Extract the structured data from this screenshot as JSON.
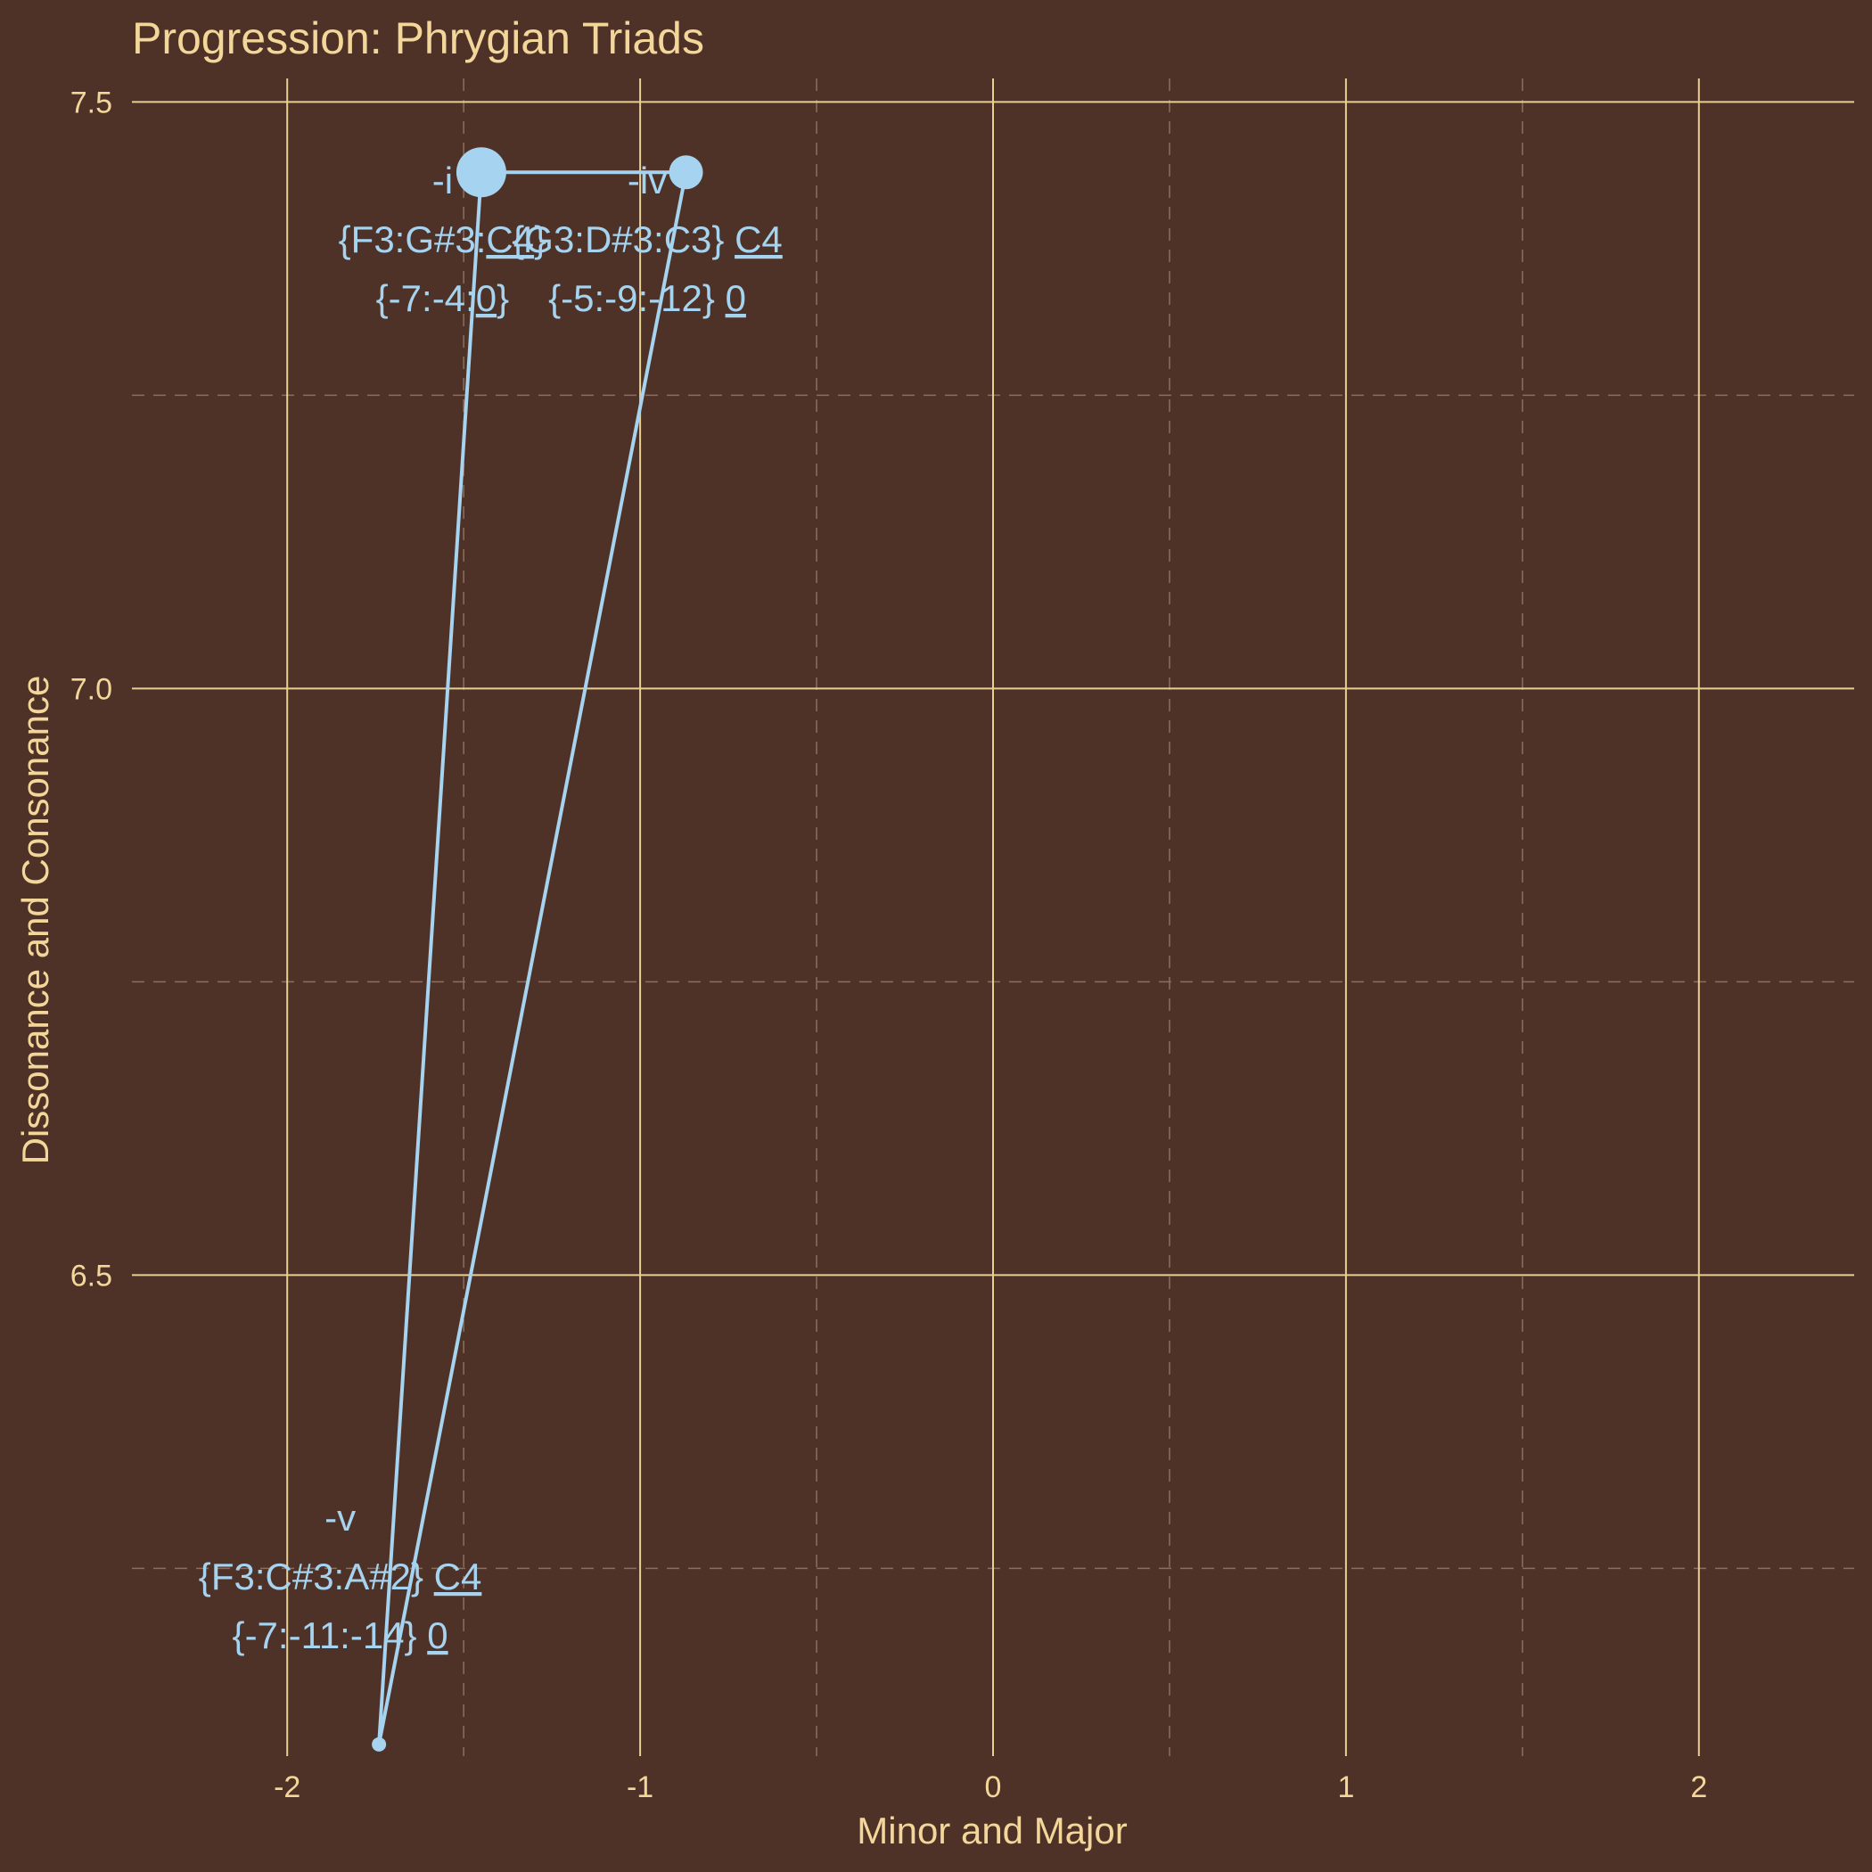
{
  "background_color": "#4f3227",
  "text_color": "#f3d79a",
  "series_color": "#a6d3ef",
  "chart_data": {
    "type": "line",
    "title": "Progression: Phrygian Triads",
    "xlabel": "Minor and Major",
    "ylabel": "Dissonance and Consonance",
    "xlim": [
      -2.44,
      2.44
    ],
    "ylim": [
      6.09,
      7.52
    ],
    "x_ticks": [
      -2,
      -1,
      0,
      1,
      2
    ],
    "x_tick_labels": [
      "-2",
      "-1",
      "0",
      "1",
      "2"
    ],
    "y_ticks": [
      6.5,
      7.0,
      7.5
    ],
    "y_tick_labels": [
      "6.5",
      "7.0",
      "7.5"
    ],
    "x_minor_ticks": [
      -1.5,
      -0.5,
      0.5,
      1.5
    ],
    "y_minor_ticks": [
      6.25,
      6.75,
      7.25
    ],
    "grid": true,
    "legend": "none",
    "path": [
      {
        "x": -1.45,
        "y": 7.44,
        "size": "large"
      },
      {
        "x": -0.87,
        "y": 7.44,
        "size": "medium"
      },
      {
        "x": -1.74,
        "y": 6.1,
        "size": "small"
      },
      {
        "x": -1.45,
        "y": 7.44,
        "size": "large"
      }
    ],
    "points": [
      {
        "name": "-i",
        "x": -1.45,
        "y": 7.44,
        "size": "large",
        "label_lines": [
          [
            {
              "text": "-i"
            }
          ],
          [
            {
              "text": "{F3:G#3:"
            },
            {
              "text": "C4",
              "underline": true
            },
            {
              "text": "}"
            }
          ],
          [
            {
              "text": "{-7:-4:"
            },
            {
              "text": "0",
              "underline": true
            },
            {
              "text": "}"
            }
          ]
        ]
      },
      {
        "name": "-iv",
        "x": -0.87,
        "y": 7.44,
        "size": "medium",
        "label_lines": [
          [
            {
              "text": "-iv"
            }
          ],
          [
            {
              "text": "{G3:D#3:C3} "
            },
            {
              "text": "C4",
              "underline": true
            }
          ],
          [
            {
              "text": "{-5:-9:-12} "
            },
            {
              "text": "0",
              "underline": true
            }
          ]
        ]
      },
      {
        "name": "-v",
        "x": -1.74,
        "y": 6.1,
        "size": "small",
        "label_lines": [
          [
            {
              "text": "-v"
            }
          ],
          [
            {
              "text": "{F3:C#3:A#2} "
            },
            {
              "text": "C4",
              "underline": true
            }
          ],
          [
            {
              "text": "{-7:-11:-14} "
            },
            {
              "text": "0",
              "underline": true
            }
          ]
        ]
      }
    ]
  }
}
